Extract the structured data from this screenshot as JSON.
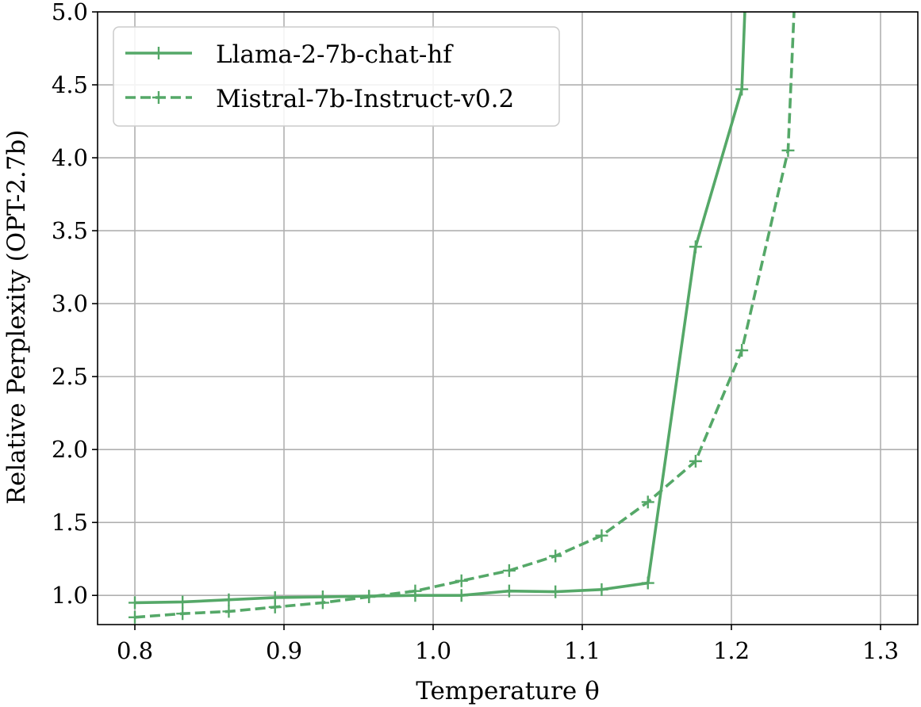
{
  "chart_data": {
    "type": "line",
    "xlabel": "Temperature θ",
    "ylabel": "Relative Perplexity (OPT-2.7b)",
    "xlim": [
      0.775,
      1.325
    ],
    "ylim": [
      0.8,
      5.0
    ],
    "xticks": [
      "0.8",
      "0.9",
      "1.0",
      "1.1",
      "1.2",
      "1.3"
    ],
    "yticks": [
      "1.0",
      "1.5",
      "2.0",
      "2.5",
      "3.0",
      "3.5",
      "4.0",
      "4.5",
      "5.0"
    ],
    "grid": true,
    "legend_position": "top-left",
    "series_color": "#55a868",
    "series": [
      {
        "name": "Llama-2-7b-chat-hf",
        "style": "solid",
        "marker": "+",
        "x": [
          0.8,
          0.832,
          0.863,
          0.894,
          0.926,
          0.957,
          0.988,
          1.019,
          1.051,
          1.082,
          1.113,
          1.144,
          1.176,
          1.207,
          1.209
        ],
        "y": [
          0.95,
          0.955,
          0.97,
          0.985,
          0.99,
          0.995,
          1.0,
          1.0,
          1.03,
          1.025,
          1.04,
          1.085,
          3.39,
          4.47,
          5.0
        ]
      },
      {
        "name": "Mistral-7b-Instruct-v0.2",
        "style": "dashed",
        "marker": "+",
        "x": [
          0.8,
          0.832,
          0.863,
          0.894,
          0.926,
          0.957,
          0.988,
          1.019,
          1.051,
          1.082,
          1.113,
          1.144,
          1.176,
          1.207,
          1.238,
          1.242
        ],
        "y": [
          0.85,
          0.875,
          0.89,
          0.92,
          0.95,
          0.99,
          1.03,
          1.1,
          1.17,
          1.27,
          1.41,
          1.64,
          1.92,
          2.68,
          4.05,
          5.0
        ],
        "markers_on": [
          0,
          1,
          2,
          3,
          4,
          5,
          6,
          7,
          8,
          9,
          10,
          11,
          12,
          13,
          14
        ]
      }
    ]
  }
}
